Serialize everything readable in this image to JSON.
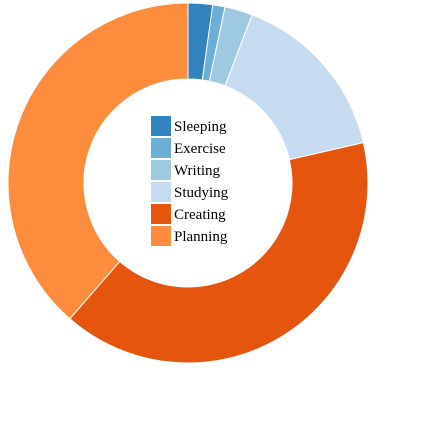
{
  "chart_data": {
    "type": "pie",
    "variant": "donut",
    "title": "",
    "categories": [
      "Sleeping",
      "Exercise",
      "Writing",
      "Studying",
      "Creating",
      "Planning"
    ],
    "values": [
      2.2,
      1.1,
      2.5,
      15.6,
      40.0,
      38.6
    ],
    "colors": [
      "#3182bd",
      "#6baed6",
      "#9ecae1",
      "#c6dbef",
      "#e6550d",
      "#fd8d3c"
    ],
    "legend_position": "center"
  }
}
